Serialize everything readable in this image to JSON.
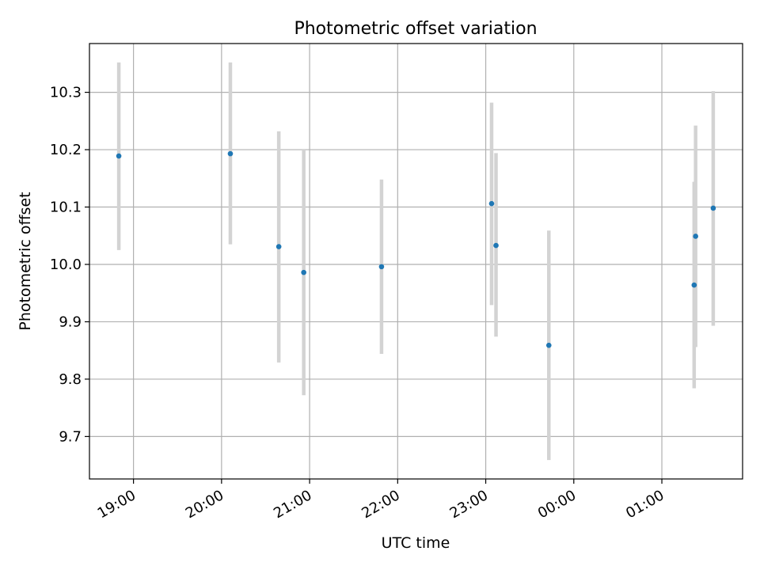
{
  "chart_data": {
    "type": "scatter",
    "title": "Photometric offset variation",
    "xlabel": "UTC time",
    "ylabel": "Photometric offset",
    "x_ticks": [
      "19:00",
      "20:00",
      "21:00",
      "22:00",
      "23:00",
      "00:00",
      "01:00"
    ],
    "y_ticks": [
      "9.7",
      "9.8",
      "9.9",
      "10.0",
      "10.1",
      "10.2",
      "10.3"
    ],
    "xlim": [
      "18:30",
      "01:55"
    ],
    "ylim": [
      9.626,
      10.385
    ],
    "grid": true,
    "series": [
      {
        "points": [
          {
            "x": "18:50",
            "y": 10.189,
            "err_low": 10.025,
            "err_high": 10.352
          },
          {
            "x": "20:06",
            "y": 10.193,
            "err_low": 10.035,
            "err_high": 10.352
          },
          {
            "x": "20:39",
            "y": 10.031,
            "err_low": 9.829,
            "err_high": 10.232
          },
          {
            "x": "20:56",
            "y": 9.986,
            "err_low": 9.772,
            "err_high": 10.2
          },
          {
            "x": "21:49",
            "y": 9.996,
            "err_low": 9.844,
            "err_high": 10.148
          },
          {
            "x": "23:04",
            "y": 10.106,
            "err_low": 9.929,
            "err_high": 10.282
          },
          {
            "x": "23:07",
            "y": 10.033,
            "err_low": 9.874,
            "err_high": 10.194
          },
          {
            "x": "23:43",
            "y": 9.859,
            "err_low": 9.659,
            "err_high": 10.059
          },
          {
            "x": "01:22",
            "y": 9.964,
            "err_low": 9.784,
            "err_high": 10.144
          },
          {
            "x": "01:23",
            "y": 10.049,
            "err_low": 9.856,
            "err_high": 10.242
          },
          {
            "x": "01:35",
            "y": 10.098,
            "err_low": 9.893,
            "err_high": 10.302
          }
        ]
      }
    ],
    "colors": {
      "marker": "#1f77b4",
      "errorbar": "#d3d3d3",
      "grid": "#b0b0b0",
      "axes": "#000000"
    }
  }
}
